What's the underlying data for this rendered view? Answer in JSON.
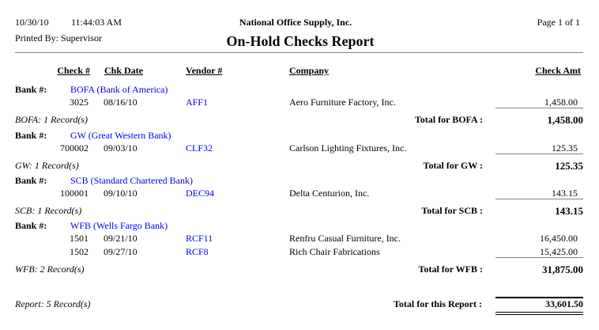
{
  "header": {
    "date": "10/30/10",
    "time": "11:44:03 AM",
    "company": "National Office Supply, Inc.",
    "page": "Page 1 of 1",
    "printed_by": "Printed By: Supervisor",
    "title": "On-Hold Checks Report"
  },
  "columns": {
    "check": "Check #",
    "date": "Chk Date",
    "vendor": "Vendor #",
    "company": "Company",
    "amount": "Check Amt"
  },
  "bank_label": "Bank #:",
  "groups": [
    {
      "bank": "BOFA (Bank of America)",
      "rows": [
        {
          "check": "3025",
          "date": "08/16/10",
          "vendor": "AFF1",
          "company": "Aero Furniture Factory, Inc.",
          "amount": "1,458.00"
        }
      ],
      "summary": "BOFA: 1 Record(s)",
      "total_label": "Total for BOFA :",
      "total": "1,458.00"
    },
    {
      "bank": "GW (Great Western Bank)",
      "rows": [
        {
          "check": "700002",
          "date": "09/03/10",
          "vendor": "CLF32",
          "company": "Carlson Lighting Fixtures, Inc.",
          "amount": "125.35"
        }
      ],
      "summary": "GW: 1 Record(s)",
      "total_label": "Total for GW :",
      "total": "125.35"
    },
    {
      "bank": "SCB (Standard Chartered Bank)",
      "rows": [
        {
          "check": "100001",
          "date": "09/10/10",
          "vendor": "DEC94",
          "company": "Delta Centurion, Inc.",
          "amount": "143.15"
        }
      ],
      "summary": "SCB: 1 Record(s)",
      "total_label": "Total for SCB :",
      "total": "143.15"
    },
    {
      "bank": "WFB (Wells Fargo Bank)",
      "rows": [
        {
          "check": "1501",
          "date": "09/21/10",
          "vendor": "RCF11",
          "company": "Renfru Casual Furniture, Inc.",
          "amount": "16,450.00"
        },
        {
          "check": "1502",
          "date": "09/27/10",
          "vendor": "RCF8",
          "company": "Rich Chair Fabrications",
          "amount": "15,425.00"
        }
      ],
      "summary": "WFB: 2 Record(s)",
      "total_label": "Total for WFB :",
      "total": "31,875.00"
    }
  ],
  "report": {
    "summary": "Report: 5 Record(s)",
    "total_label": "Total for this Report :",
    "total": "33,601.50"
  },
  "colors": {
    "link": "#0000ee",
    "rule": "#808080"
  }
}
